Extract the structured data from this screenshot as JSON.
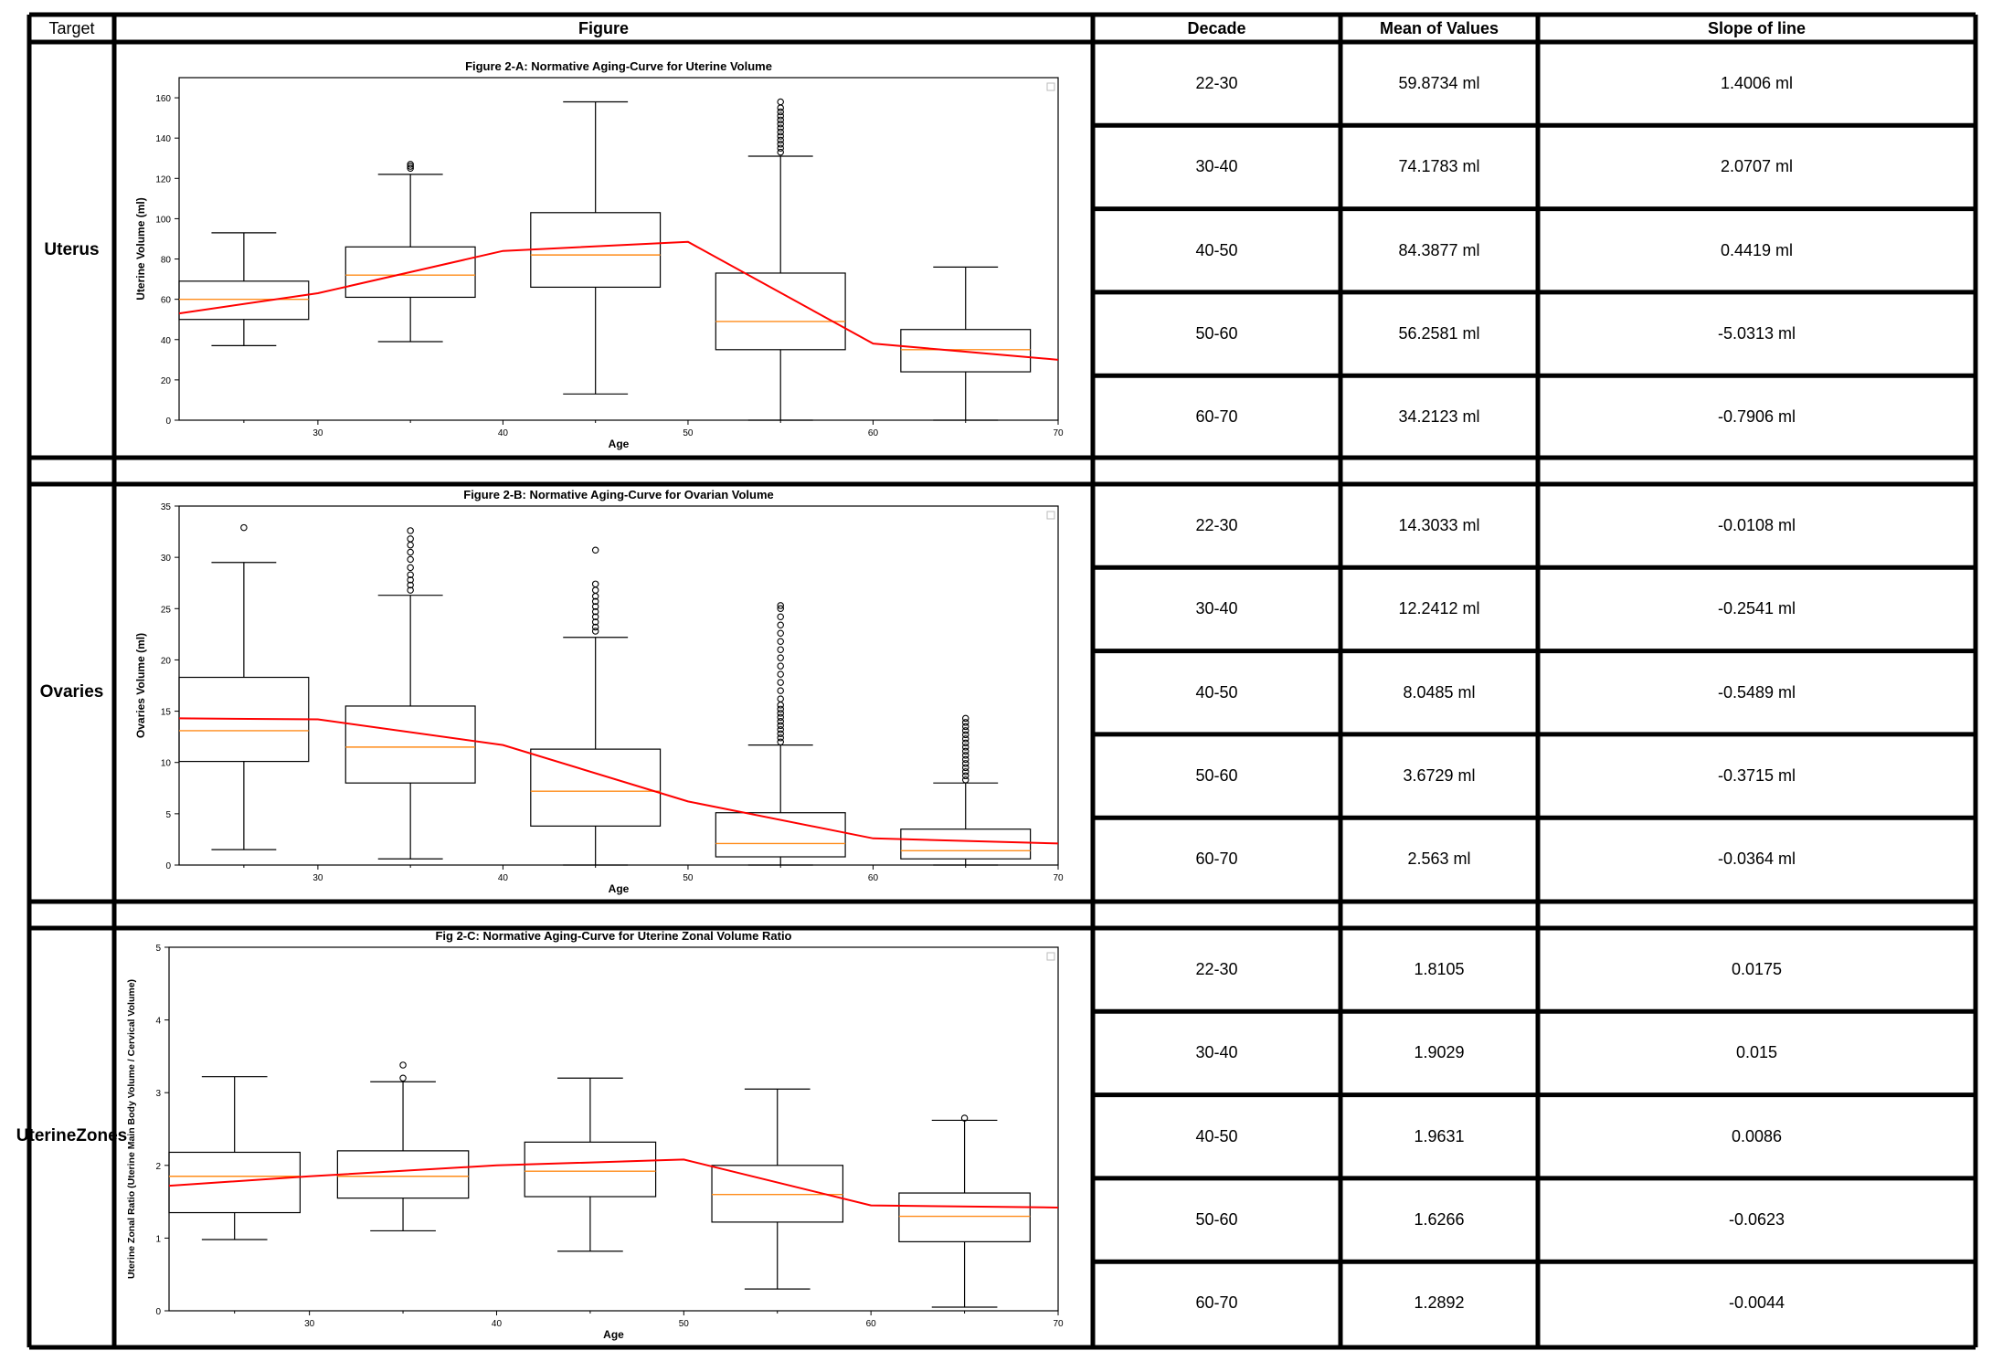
{
  "headers": {
    "target": "Target",
    "figure": "Figure",
    "decade": "Decade",
    "mean": "Mean of Values",
    "slope": "Slope of line"
  },
  "sections": [
    {
      "target": [
        "Uterus"
      ],
      "rows": [
        {
          "decade": "22-30",
          "mean": "59.8734 ml",
          "slope": "1.4006 ml"
        },
        {
          "decade": "30-40",
          "mean": "74.1783 ml",
          "slope": "2.0707 ml"
        },
        {
          "decade": "40-50",
          "mean": "84.3877 ml",
          "slope": "0.4419 ml"
        },
        {
          "decade": "50-60",
          "mean": "56.2581 ml",
          "slope": "-5.0313 ml"
        },
        {
          "decade": "60-70",
          "mean": "34.2123 ml",
          "slope": "-0.7906 ml"
        }
      ]
    },
    {
      "target": [
        "Ovaries"
      ],
      "rows": [
        {
          "decade": "22-30",
          "mean": "14.3033 ml",
          "slope": "-0.0108 ml"
        },
        {
          "decade": "30-40",
          "mean": "12.2412 ml",
          "slope": "-0.2541 ml"
        },
        {
          "decade": "40-50",
          "mean": "8.0485 ml",
          "slope": "-0.5489 ml"
        },
        {
          "decade": "50-60",
          "mean": "3.6729 ml",
          "slope": "-0.3715 ml"
        },
        {
          "decade": "60-70",
          "mean": "2.563 ml",
          "slope": "-0.0364 ml"
        }
      ]
    },
    {
      "target": [
        "Uterine",
        "Zones"
      ],
      "rows": [
        {
          "decade": "22-30",
          "mean": "1.8105",
          "slope": "0.0175"
        },
        {
          "decade": "30-40",
          "mean": "1.9029",
          "slope": "0.015"
        },
        {
          "decade": "40-50",
          "mean": "1.9631",
          "slope": "0.0086"
        },
        {
          "decade": "50-60",
          "mean": "1.6266",
          "slope": "-0.0623"
        },
        {
          "decade": "60-70",
          "mean": "1.2892",
          "slope": "-0.0044"
        }
      ]
    }
  ],
  "colors": {
    "trend": "#ff0000",
    "median": "#ff8c1a",
    "box": "#000000"
  },
  "chart_data": [
    {
      "type": "box",
      "title": "Figure 2-A: Normative Aging-Curve for Uterine Volume",
      "xlabel": "Age",
      "ylabel": "Uterine Volume (ml)",
      "xlim": [
        22.5,
        70
      ],
      "ylim": [
        0,
        170
      ],
      "xticks": [
        30,
        40,
        50,
        60,
        70
      ],
      "yticks": [
        0,
        20,
        40,
        60,
        80,
        100,
        120,
        140,
        160
      ],
      "boxes": [
        {
          "pos": 26,
          "whislo": 37,
          "q1": 50,
          "med": 60,
          "q3": 69,
          "whishi": 93,
          "fliers": []
        },
        {
          "pos": 35,
          "whislo": 39,
          "q1": 61,
          "med": 72,
          "q3": 86,
          "whishi": 122,
          "fliers": [
            125,
            126,
            127
          ]
        },
        {
          "pos": 45,
          "whislo": 13,
          "q1": 66,
          "med": 82,
          "q3": 103,
          "whishi": 158,
          "fliers": []
        },
        {
          "pos": 55,
          "whislo": 0,
          "q1": 35,
          "med": 49,
          "q3": 73,
          "whishi": 131,
          "fliers": [
            133,
            135,
            137,
            139,
            141,
            143,
            145,
            147,
            149,
            151,
            153,
            155,
            158
          ]
        },
        {
          "pos": 65,
          "whislo": 0,
          "q1": 24,
          "med": 35,
          "q3": 45,
          "whishi": 76,
          "fliers": []
        }
      ],
      "trend": {
        "x": [
          22.5,
          30,
          40,
          50,
          60,
          70
        ],
        "y": [
          53,
          63,
          84,
          88.5,
          38,
          30
        ]
      }
    },
    {
      "type": "box",
      "title": "Figure 2-B: Normative Aging-Curve for Ovarian Volume",
      "xlabel": "Age",
      "ylabel": "Ovaries Volume (ml)",
      "xlim": [
        22.5,
        70
      ],
      "ylim": [
        0,
        35
      ],
      "xticks": [
        30,
        40,
        50,
        60,
        70
      ],
      "yticks": [
        0,
        5,
        10,
        15,
        20,
        25,
        30,
        35
      ],
      "boxes": [
        {
          "pos": 26,
          "whislo": 1.5,
          "q1": 10.1,
          "med": 13.1,
          "q3": 18.3,
          "whishi": 29.5,
          "fliers": [
            32.9
          ]
        },
        {
          "pos": 35,
          "whislo": 0.6,
          "q1": 8.0,
          "med": 11.5,
          "q3": 15.5,
          "whishi": 26.3,
          "fliers": [
            26.8,
            27.3,
            27.8,
            28.3,
            29.0,
            29.8,
            30.5,
            31.2,
            31.8,
            32.6
          ]
        },
        {
          "pos": 45,
          "whislo": 0,
          "q1": 3.8,
          "med": 7.2,
          "q3": 11.3,
          "whishi": 22.2,
          "fliers": [
            22.8,
            23.2,
            23.7,
            24.2,
            24.7,
            25.2,
            25.7,
            26.2,
            26.8,
            27.4,
            30.7
          ]
        },
        {
          "pos": 55,
          "whislo": 0,
          "q1": 0.8,
          "med": 2.1,
          "q3": 5.1,
          "whishi": 11.7,
          "fliers": [
            12.0,
            12.4,
            12.8,
            13.2,
            13.6,
            14.0,
            14.4,
            14.8,
            15.2,
            15.6,
            16.2,
            17.0,
            17.8,
            18.6,
            19.4,
            20.2,
            21.0,
            21.8,
            22.6,
            23.4,
            24.2,
            25.0,
            25.3
          ]
        },
        {
          "pos": 65,
          "whislo": 0,
          "q1": 0.6,
          "med": 1.4,
          "q3": 3.5,
          "whishi": 8.0,
          "fliers": [
            8.3,
            8.7,
            9.1,
            9.5,
            9.9,
            10.3,
            10.7,
            11.1,
            11.5,
            11.9,
            12.3,
            12.7,
            13.1,
            13.5,
            13.9,
            14.3
          ]
        }
      ],
      "trend": {
        "x": [
          22.5,
          30,
          40,
          50,
          60,
          70
        ],
        "y": [
          14.3,
          14.2,
          11.7,
          6.2,
          2.6,
          2.1
        ]
      }
    },
    {
      "type": "box",
      "title": "Fig 2-C: Normative Aging-Curve for Uterine Zonal Volume Ratio",
      "xlabel": "Age",
      "ylabel": "Uterine Zonal Ratio (Uterine Main Body Volume / Cervical Volume)",
      "xlim": [
        22.5,
        70
      ],
      "ylim": [
        0,
        5
      ],
      "xticks": [
        30,
        40,
        50,
        60,
        70
      ],
      "yticks": [
        0,
        1,
        2,
        3,
        4,
        5
      ],
      "boxes": [
        {
          "pos": 26,
          "whislo": 0.98,
          "q1": 1.35,
          "med": 1.85,
          "q3": 2.18,
          "whishi": 3.22,
          "fliers": []
        },
        {
          "pos": 35,
          "whislo": 1.1,
          "q1": 1.55,
          "med": 1.85,
          "q3": 2.2,
          "whishi": 3.15,
          "fliers": [
            3.2,
            3.38
          ]
        },
        {
          "pos": 45,
          "whislo": 0.82,
          "q1": 1.57,
          "med": 1.92,
          "q3": 2.32,
          "whishi": 3.2,
          "fliers": []
        },
        {
          "pos": 55,
          "whislo": 0.3,
          "q1": 1.22,
          "med": 1.6,
          "q3": 2.0,
          "whishi": 3.05,
          "fliers": []
        },
        {
          "pos": 65,
          "whislo": 0.05,
          "q1": 0.95,
          "med": 1.3,
          "q3": 1.62,
          "whishi": 2.62,
          "fliers": [
            2.65
          ]
        }
      ],
      "trend": {
        "x": [
          22.5,
          30,
          40,
          50,
          60,
          70
        ],
        "y": [
          1.72,
          1.85,
          2.0,
          2.08,
          1.45,
          1.42
        ]
      }
    }
  ]
}
